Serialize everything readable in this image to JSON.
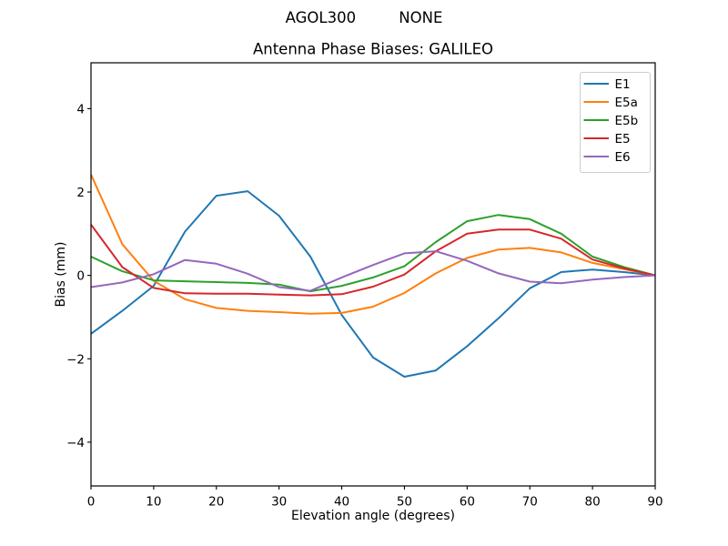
{
  "figure": {
    "suptitle": "AGOL300         NONE",
    "background": "#ffffff"
  },
  "chart_data": {
    "type": "line",
    "title": "Antenna Phase Biases: GALILEO",
    "xlabel": "Elevation angle (degrees)",
    "ylabel": "Bias (mm)",
    "xlim": [
      0,
      90
    ],
    "ylim": [
      -5.05,
      5.1
    ],
    "xticks": [
      0,
      10,
      20,
      30,
      40,
      50,
      60,
      70,
      80,
      90
    ],
    "xtick_labels": [
      "0",
      "10",
      "20",
      "30",
      "40",
      "50",
      "60",
      "70",
      "80",
      "90"
    ],
    "yticks": [
      -4,
      -2,
      0,
      2,
      4
    ],
    "ytick_labels": [
      "−4",
      "−2",
      "0",
      "2",
      "4"
    ],
    "grid": false,
    "legend_position": "upper right",
    "axis_color": "#000000",
    "legend_border_color": "#cccccc",
    "x": [
      0,
      5,
      10,
      15,
      20,
      25,
      30,
      35,
      40,
      45,
      50,
      55,
      60,
      65,
      70,
      75,
      80,
      85,
      90
    ],
    "series": [
      {
        "name": "E1",
        "color": "#1f77b4",
        "values": [
          -1.4,
          -0.85,
          -0.25,
          1.05,
          1.91,
          2.02,
          1.43,
          0.45,
          -0.95,
          -1.97,
          -2.43,
          -2.28,
          -1.7,
          -1.03,
          -0.31,
          0.08,
          0.14,
          0.08,
          0.0
        ]
      },
      {
        "name": "E5a",
        "color": "#ff7f0e",
        "values": [
          2.42,
          0.75,
          -0.13,
          -0.57,
          -0.78,
          -0.85,
          -0.88,
          -0.92,
          -0.9,
          -0.75,
          -0.42,
          0.05,
          0.42,
          0.62,
          0.66,
          0.55,
          0.3,
          0.15,
          0.0
        ]
      },
      {
        "name": "E5b",
        "color": "#2ca02c",
        "values": [
          0.45,
          0.1,
          -0.12,
          -0.14,
          -0.16,
          -0.18,
          -0.22,
          -0.38,
          -0.25,
          -0.05,
          0.22,
          0.8,
          1.3,
          1.45,
          1.35,
          1.0,
          0.45,
          0.2,
          0.0
        ]
      },
      {
        "name": "E5",
        "color": "#d62728",
        "values": [
          1.22,
          0.2,
          -0.3,
          -0.43,
          -0.44,
          -0.44,
          -0.46,
          -0.48,
          -0.45,
          -0.27,
          0.02,
          0.58,
          1.0,
          1.1,
          1.1,
          0.88,
          0.38,
          0.17,
          0.0
        ]
      },
      {
        "name": "E6",
        "color": "#9467bd",
        "values": [
          -0.28,
          -0.17,
          0.03,
          0.37,
          0.28,
          0.04,
          -0.28,
          -0.37,
          -0.05,
          0.25,
          0.53,
          0.58,
          0.35,
          0.05,
          -0.15,
          -0.19,
          -0.1,
          -0.04,
          0.0
        ]
      }
    ]
  }
}
